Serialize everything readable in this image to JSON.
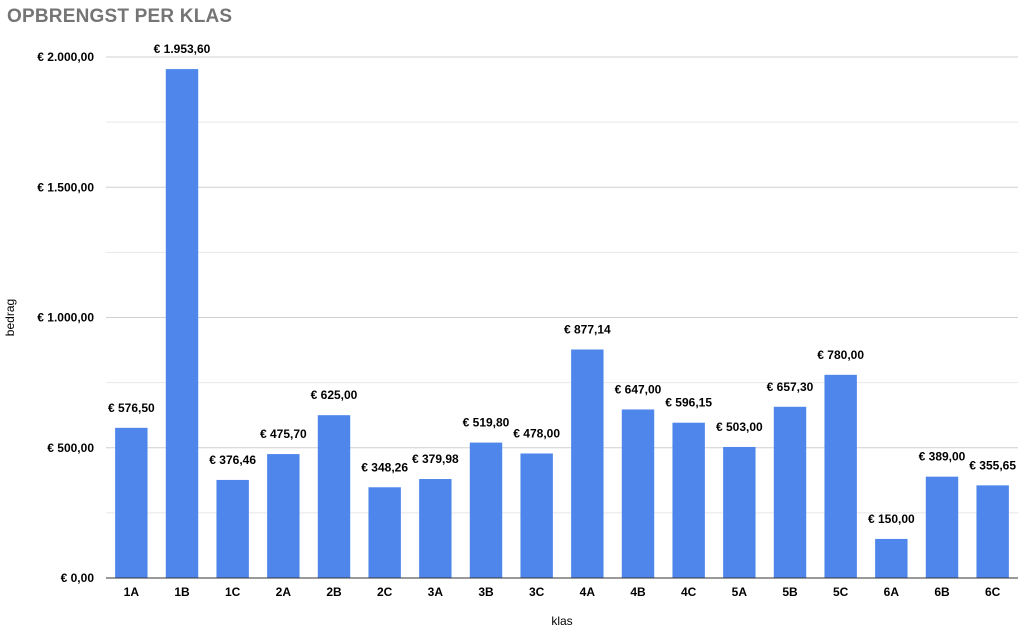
{
  "chart_data": {
    "type": "bar",
    "title": "OPBRENGST PER KLAS",
    "xlabel": "klas",
    "ylabel": "bedrag",
    "ylim": [
      0,
      2000
    ],
    "yticks": [
      0,
      500,
      1000,
      1500,
      2000
    ],
    "ytick_labels": [
      "€ 0,00",
      "€ 500,00",
      "€ 1.000,00",
      "€ 1.500,00",
      "€ 2.000,00"
    ],
    "grid": true,
    "bar_color": "#4f86ec",
    "categories": [
      "1A",
      "1B",
      "1C",
      "2A",
      "2B",
      "2C",
      "3A",
      "3B",
      "3C",
      "4A",
      "4B",
      "4C",
      "5A",
      "5B",
      "5C",
      "6A",
      "6B",
      "6C"
    ],
    "values": [
      576.5,
      1953.6,
      376.46,
      475.7,
      625.0,
      348.26,
      379.98,
      519.8,
      478.0,
      877.14,
      647.0,
      596.15,
      503.0,
      657.3,
      780.0,
      150.0,
      389.0,
      355.65
    ],
    "data_labels": [
      "€ 576,50",
      "€ 1.953,60",
      "€ 376,46",
      "€ 475,70",
      "€ 625,00",
      "€ 348,26",
      "€ 379,98",
      "€ 519,80",
      "€ 478,00",
      "€ 877,14",
      "€ 647,00",
      "€ 596,15",
      "€ 503,00",
      "€ 657,30",
      "€ 780,00",
      "€ 150,00",
      "€ 389,00",
      "€ 355,65"
    ]
  }
}
